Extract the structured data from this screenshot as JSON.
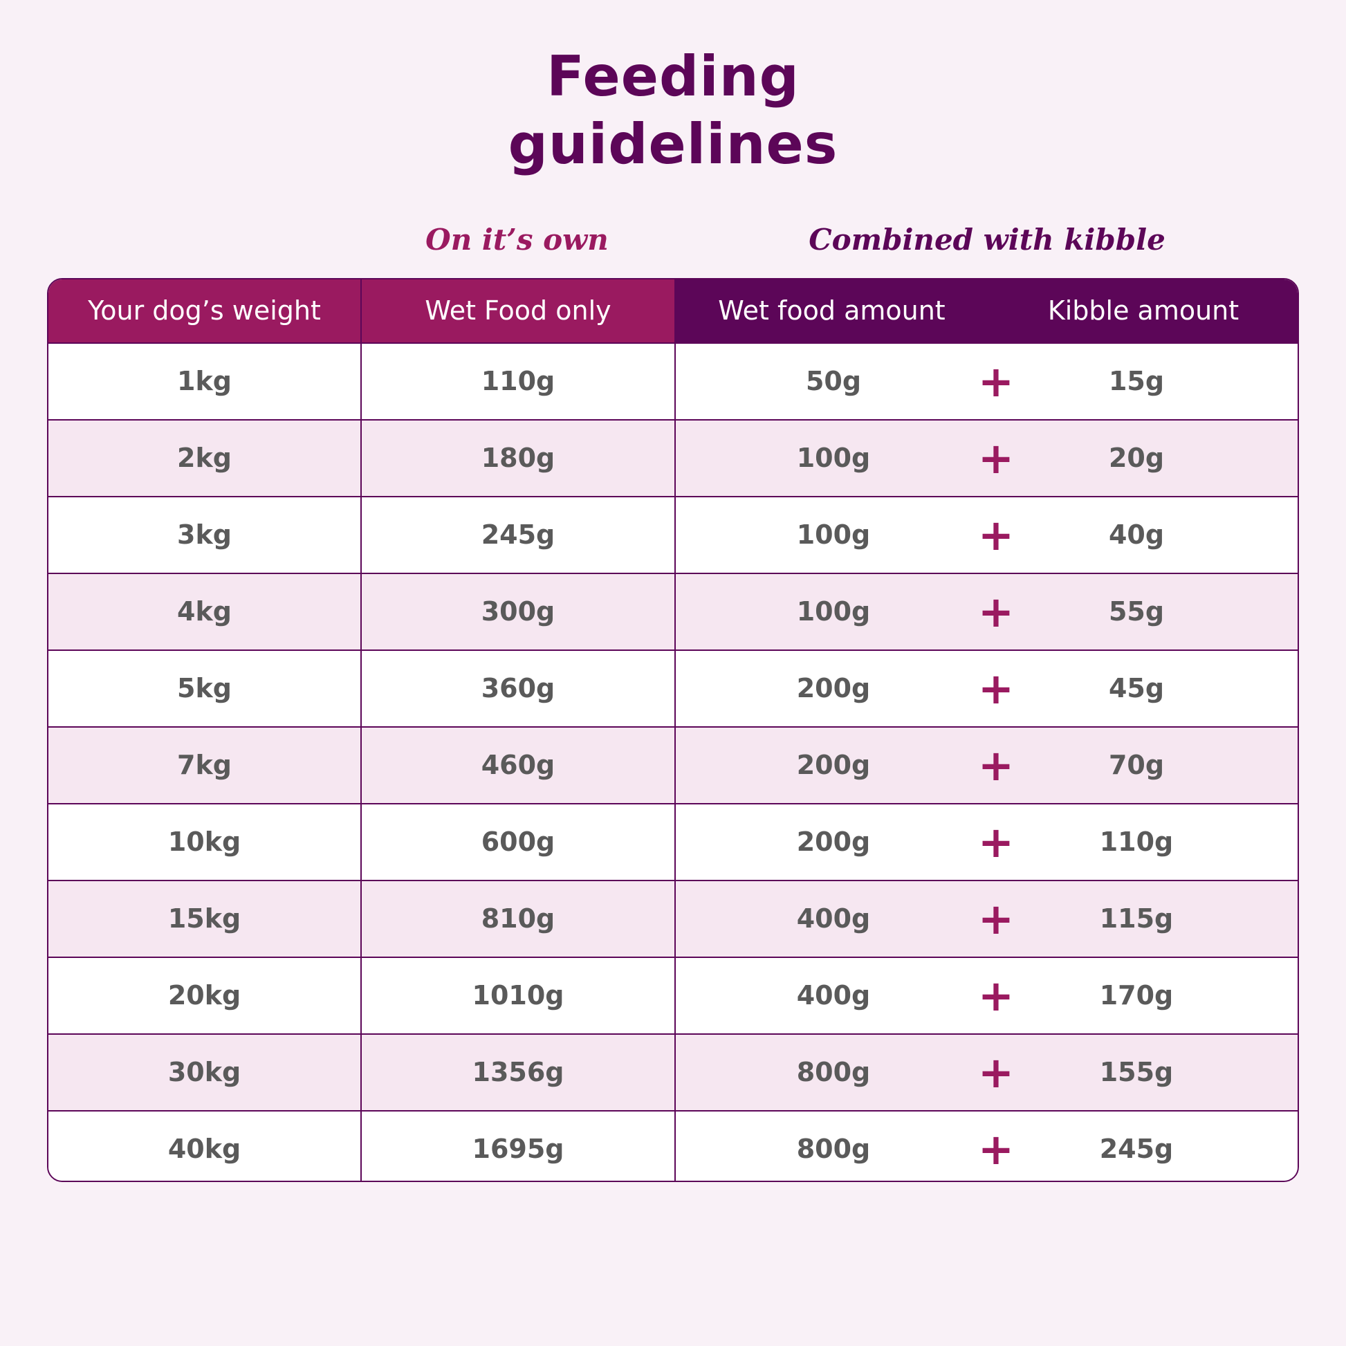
{
  "title": {
    "line1": "Feeding",
    "line2": "guidelines"
  },
  "section_labels": {
    "own": "On it’s own",
    "combined": "Combined with kibble"
  },
  "table": {
    "headers": {
      "weight": "Your dog’s weight",
      "wet_only": "Wet Food only",
      "wet_amount": "Wet food amount",
      "kibble_amount": "Kibble amount"
    },
    "plus_symbol": "+",
    "rows": [
      {
        "weight": "1kg",
        "wet_only": "110g",
        "wet_amount": "50g",
        "kibble": "15g"
      },
      {
        "weight": "2kg",
        "wet_only": "180g",
        "wet_amount": "100g",
        "kibble": "20g"
      },
      {
        "weight": "3kg",
        "wet_only": "245g",
        "wet_amount": "100g",
        "kibble": "40g"
      },
      {
        "weight": "4kg",
        "wet_only": "300g",
        "wet_amount": "100g",
        "kibble": "55g"
      },
      {
        "weight": "5kg",
        "wet_only": "360g",
        "wet_amount": "200g",
        "kibble": "45g"
      },
      {
        "weight": "7kg",
        "wet_only": "460g",
        "wet_amount": "200g",
        "kibble": "70g"
      },
      {
        "weight": "10kg",
        "wet_only": "600g",
        "wet_amount": "200g",
        "kibble": "110g"
      },
      {
        "weight": "15kg",
        "wet_only": "810g",
        "wet_amount": "400g",
        "kibble": "115g"
      },
      {
        "weight": "20kg",
        "wet_only": "1010g",
        "wet_amount": "400g",
        "kibble": "170g"
      },
      {
        "weight": "30kg",
        "wet_only": "1356g",
        "wet_amount": "800g",
        "kibble": "155g"
      },
      {
        "weight": "40kg",
        "wet_only": "1695g",
        "wet_amount": "800g",
        "kibble": "245g"
      }
    ]
  },
  "colors": {
    "background": "#f9f1f7",
    "dark_purple": "#5c0658",
    "magenta": "#9a1a60",
    "row_alt": "#f6e7f1",
    "text_grey": "#5a5a5a"
  }
}
